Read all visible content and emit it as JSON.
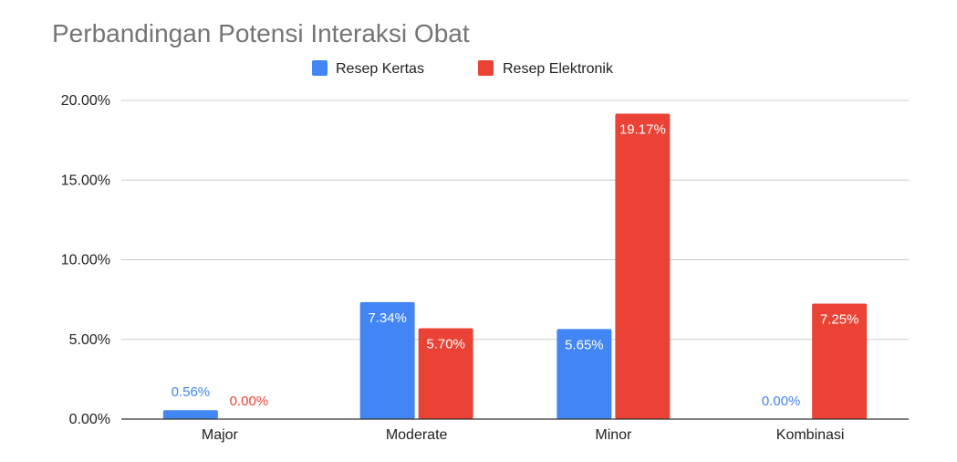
{
  "chart_data": {
    "type": "bar",
    "title": "Perbandingan Potensi Interaksi Obat",
    "xlabel": "",
    "ylabel": "",
    "categories": [
      "Major",
      "Moderate",
      "Minor",
      "Kombinasi"
    ],
    "series": [
      {
        "name": "Resep Kertas",
        "color": "#4285f4",
        "values": [
          0.56,
          7.34,
          5.65,
          0.0
        ],
        "labels": [
          "0.56%",
          "7.34%",
          "5.65%",
          "0.00%"
        ]
      },
      {
        "name": "Resep Elektronik",
        "color": "#ea4335",
        "values": [
          0.0,
          5.7,
          19.17,
          7.25
        ],
        "labels": [
          "0.00%",
          "5.70%",
          "19.17%",
          "7.25%"
        ]
      }
    ],
    "ylim": [
      0,
      20
    ],
    "yticks": [
      {
        "value": 0,
        "label": "0.00%"
      },
      {
        "value": 5,
        "label": "5.00%"
      },
      {
        "value": 10,
        "label": "10.00%"
      },
      {
        "value": 15,
        "label": "15.00%"
      },
      {
        "value": 20,
        "label": "20.00%"
      }
    ],
    "grid": true,
    "legend_position": "top-center"
  }
}
